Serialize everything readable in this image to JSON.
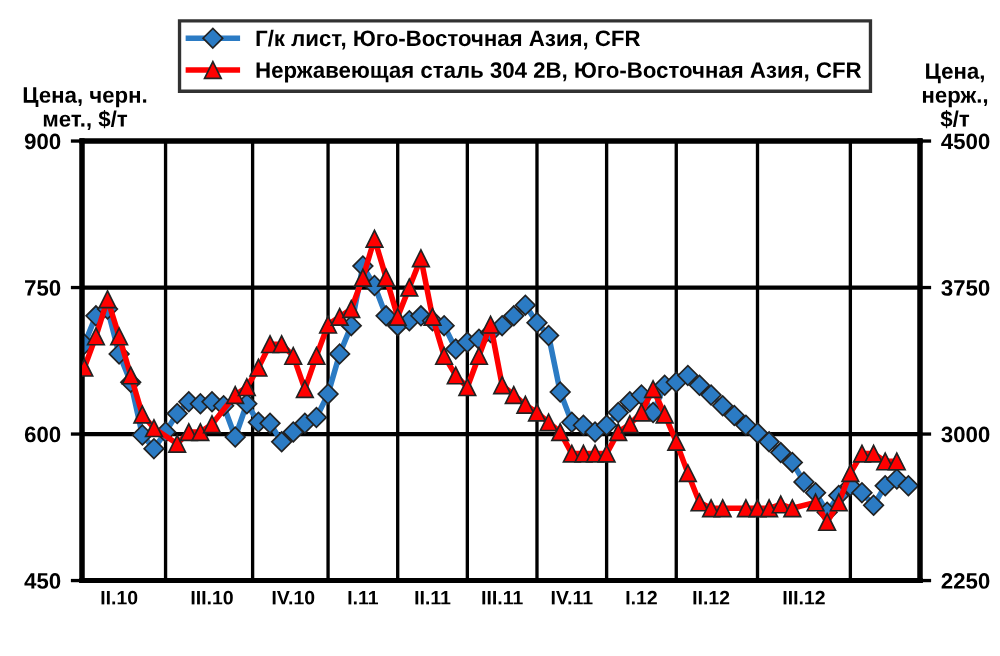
{
  "chart_data": {
    "type": "line",
    "ylabel": "Цена, черн.\nмет., $/т",
    "y2label": "Цена,\nнерж.,\n$/т",
    "categories": [
      null,
      null,
      null,
      "II.10",
      null,
      null,
      null,
      null,
      null,
      null,
      null,
      "III.10",
      null,
      null,
      null,
      null,
      null,
      null,
      "IV.10",
      null,
      null,
      null,
      null,
      null,
      "I.11",
      null,
      null,
      null,
      null,
      null,
      "II.11",
      null,
      null,
      null,
      null,
      null,
      "III.11",
      null,
      null,
      null,
      null,
      null,
      "IV.11",
      null,
      null,
      null,
      null,
      null,
      "I.12",
      null,
      null,
      null,
      null,
      null,
      "II.12",
      null,
      null,
      null,
      null,
      null,
      null,
      null,
      "III.12",
      null,
      null,
      null,
      null,
      null,
      null,
      null,
      null,
      null
    ],
    "ylim": [
      450,
      900
    ],
    "yticks": [
      450,
      600,
      750,
      900
    ],
    "y2lim": [
      2250,
      4500
    ],
    "y2ticks": [
      2250,
      3000,
      3750,
      4500
    ],
    "grid": true,
    "legend": "top",
    "line_style": "solid",
    "series": [
      {
        "name": "Г/к лист, Юго-Восточная Азия, CFR",
        "color": "#2b7bc4",
        "marker": "diamond",
        "values": [
          692,
          721,
          728,
          682,
          653,
          599,
          585,
          602,
          621,
          633,
          631,
          633,
          629,
          597,
          631,
          612,
          611,
          592,
          602,
          611,
          617,
          641,
          682,
          711,
          772,
          752,
          721,
          711,
          716,
          721,
          716,
          711,
          687,
          694,
          697,
          704,
          711,
          721,
          732,
          714,
          701,
          643,
          612,
          609,
          602,
          609,
          622,
          633,
          640,
          622,
          650,
          653,
          660,
          650,
          640,
          629,
          619,
          609,
          601,
          592,
          581,
          571,
          551,
          540,
          520,
          537,
          547,
          540,
          527,
          547,
          554,
          547
        ]
      },
      {
        "name": "Нержавеющая сталь 304 2В, Юго-Восточная Азия, CFR",
        "color": "#ff0000",
        "marker": "triangle",
        "axis": "y2",
        "values": [
          3340,
          3500,
          3690,
          3500,
          3300,
          3100,
          3030,
          null,
          2950,
          3010,
          3010,
          3050,
          null,
          3200,
          3240,
          3340,
          3460,
          3460,
          3400,
          3230,
          3400,
          3560,
          3600,
          3640,
          3800,
          4000,
          3800,
          3600,
          3750,
          3900,
          3600,
          3400,
          3300,
          3240,
          3400,
          3560,
          3250,
          3200,
          3150,
          3110,
          3060,
          3010,
          2900,
          2900,
          2900,
          2900,
          3010,
          3050,
          3110,
          3230,
          3100,
          2960,
          2800,
          2650,
          2620,
          2620,
          null,
          2620,
          2620,
          2620,
          2640,
          2620,
          null,
          2650,
          2550,
          2650,
          2800,
          2900,
          2900,
          2860,
          2860,
          null
        ]
      }
    ]
  }
}
